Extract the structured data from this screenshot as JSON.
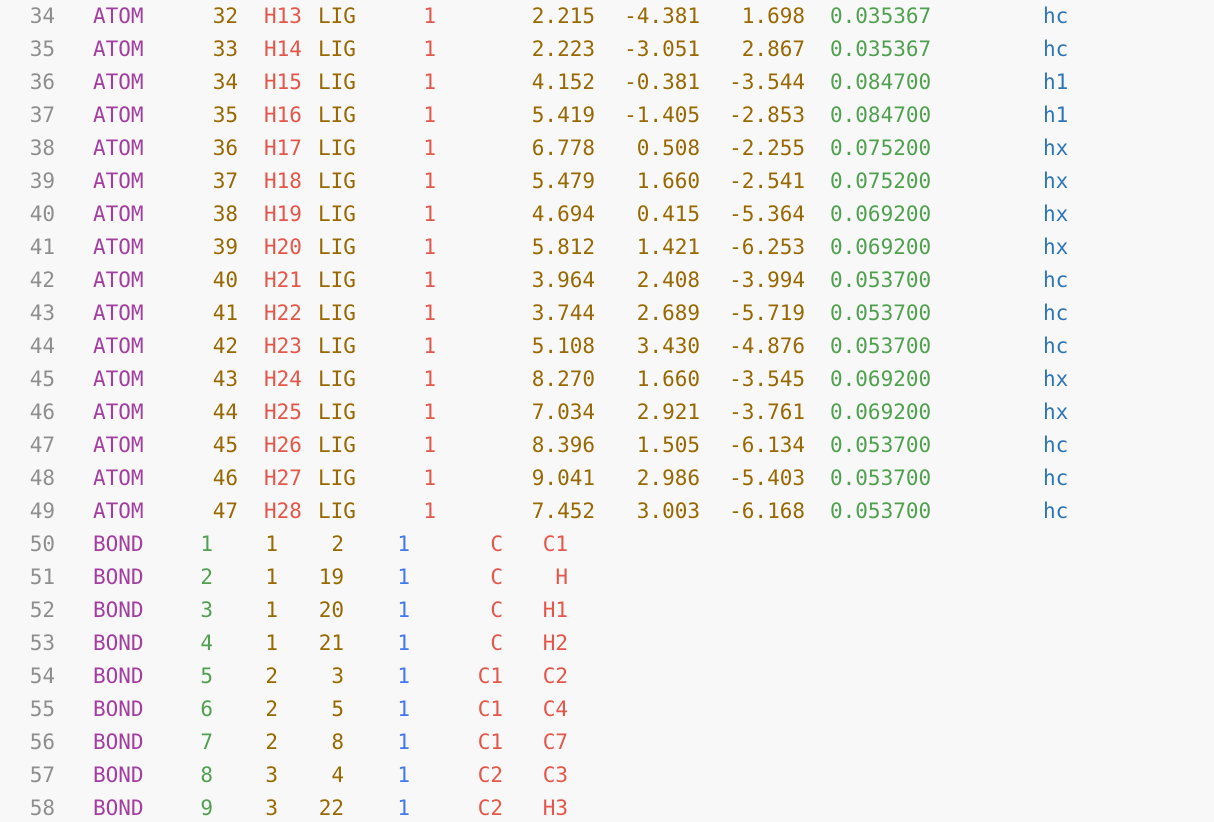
{
  "atoms": [
    {
      "ln": "34",
      "rec": "ATOM",
      "serial": "32",
      "name": "H13",
      "res": "LIG",
      "resnum": "1",
      "x": "2.215",
      "y": "-4.381",
      "z": "1.698",
      "charge": "0.035367",
      "type": "hc"
    },
    {
      "ln": "35",
      "rec": "ATOM",
      "serial": "33",
      "name": "H14",
      "res": "LIG",
      "resnum": "1",
      "x": "2.223",
      "y": "-3.051",
      "z": "2.867",
      "charge": "0.035367",
      "type": "hc"
    },
    {
      "ln": "36",
      "rec": "ATOM",
      "serial": "34",
      "name": "H15",
      "res": "LIG",
      "resnum": "1",
      "x": "4.152",
      "y": "-0.381",
      "z": "-3.544",
      "charge": "0.084700",
      "type": "h1"
    },
    {
      "ln": "37",
      "rec": "ATOM",
      "serial": "35",
      "name": "H16",
      "res": "LIG",
      "resnum": "1",
      "x": "5.419",
      "y": "-1.405",
      "z": "-2.853",
      "charge": "0.084700",
      "type": "h1"
    },
    {
      "ln": "38",
      "rec": "ATOM",
      "serial": "36",
      "name": "H17",
      "res": "LIG",
      "resnum": "1",
      "x": "6.778",
      "y": "0.508",
      "z": "-2.255",
      "charge": "0.075200",
      "type": "hx"
    },
    {
      "ln": "39",
      "rec": "ATOM",
      "serial": "37",
      "name": "H18",
      "res": "LIG",
      "resnum": "1",
      "x": "5.479",
      "y": "1.660",
      "z": "-2.541",
      "charge": "0.075200",
      "type": "hx"
    },
    {
      "ln": "40",
      "rec": "ATOM",
      "serial": "38",
      "name": "H19",
      "res": "LIG",
      "resnum": "1",
      "x": "4.694",
      "y": "0.415",
      "z": "-5.364",
      "charge": "0.069200",
      "type": "hx"
    },
    {
      "ln": "41",
      "rec": "ATOM",
      "serial": "39",
      "name": "H20",
      "res": "LIG",
      "resnum": "1",
      "x": "5.812",
      "y": "1.421",
      "z": "-6.253",
      "charge": "0.069200",
      "type": "hx"
    },
    {
      "ln": "42",
      "rec": "ATOM",
      "serial": "40",
      "name": "H21",
      "res": "LIG",
      "resnum": "1",
      "x": "3.964",
      "y": "2.408",
      "z": "-3.994",
      "charge": "0.053700",
      "type": "hc"
    },
    {
      "ln": "43",
      "rec": "ATOM",
      "serial": "41",
      "name": "H22",
      "res": "LIG",
      "resnum": "1",
      "x": "3.744",
      "y": "2.689",
      "z": "-5.719",
      "charge": "0.053700",
      "type": "hc"
    },
    {
      "ln": "44",
      "rec": "ATOM",
      "serial": "42",
      "name": "H23",
      "res": "LIG",
      "resnum": "1",
      "x": "5.108",
      "y": "3.430",
      "z": "-4.876",
      "charge": "0.053700",
      "type": "hc"
    },
    {
      "ln": "45",
      "rec": "ATOM",
      "serial": "43",
      "name": "H24",
      "res": "LIG",
      "resnum": "1",
      "x": "8.270",
      "y": "1.660",
      "z": "-3.545",
      "charge": "0.069200",
      "type": "hx"
    },
    {
      "ln": "46",
      "rec": "ATOM",
      "serial": "44",
      "name": "H25",
      "res": "LIG",
      "resnum": "1",
      "x": "7.034",
      "y": "2.921",
      "z": "-3.761",
      "charge": "0.069200",
      "type": "hx"
    },
    {
      "ln": "47",
      "rec": "ATOM",
      "serial": "45",
      "name": "H26",
      "res": "LIG",
      "resnum": "1",
      "x": "8.396",
      "y": "1.505",
      "z": "-6.134",
      "charge": "0.053700",
      "type": "hc"
    },
    {
      "ln": "48",
      "rec": "ATOM",
      "serial": "46",
      "name": "H27",
      "res": "LIG",
      "resnum": "1",
      "x": "9.041",
      "y": "2.986",
      "z": "-5.403",
      "charge": "0.053700",
      "type": "hc"
    },
    {
      "ln": "49",
      "rec": "ATOM",
      "serial": "47",
      "name": "H28",
      "res": "LIG",
      "resnum": "1",
      "x": "7.452",
      "y": "3.003",
      "z": "-6.168",
      "charge": "0.053700",
      "type": "hc"
    }
  ],
  "bonds": [
    {
      "ln": "50",
      "rec": "BOND",
      "id": "1",
      "a1": "1",
      "a2": "2",
      "order": "1",
      "n1": "C",
      "n2": "C1"
    },
    {
      "ln": "51",
      "rec": "BOND",
      "id": "2",
      "a1": "1",
      "a2": "19",
      "order": "1",
      "n1": "C",
      "n2": "H"
    },
    {
      "ln": "52",
      "rec": "BOND",
      "id": "3",
      "a1": "1",
      "a2": "20",
      "order": "1",
      "n1": "C",
      "n2": "H1"
    },
    {
      "ln": "53",
      "rec": "BOND",
      "id": "4",
      "a1": "1",
      "a2": "21",
      "order": "1",
      "n1": "C",
      "n2": "H2"
    },
    {
      "ln": "54",
      "rec": "BOND",
      "id": "5",
      "a1": "2",
      "a2": "3",
      "order": "1",
      "n1": "C1",
      "n2": "C2"
    },
    {
      "ln": "55",
      "rec": "BOND",
      "id": "6",
      "a1": "2",
      "a2": "5",
      "order": "1",
      "n1": "C1",
      "n2": "C4"
    },
    {
      "ln": "56",
      "rec": "BOND",
      "id": "7",
      "a1": "2",
      "a2": "8",
      "order": "1",
      "n1": "C1",
      "n2": "C7"
    },
    {
      "ln": "57",
      "rec": "BOND",
      "id": "8",
      "a1": "3",
      "a2": "4",
      "order": "1",
      "n1": "C2",
      "n2": "C3"
    },
    {
      "ln": "58",
      "rec": "BOND",
      "id": "9",
      "a1": "3",
      "a2": "22",
      "order": "1",
      "n1": "C2",
      "n2": "H3"
    }
  ]
}
